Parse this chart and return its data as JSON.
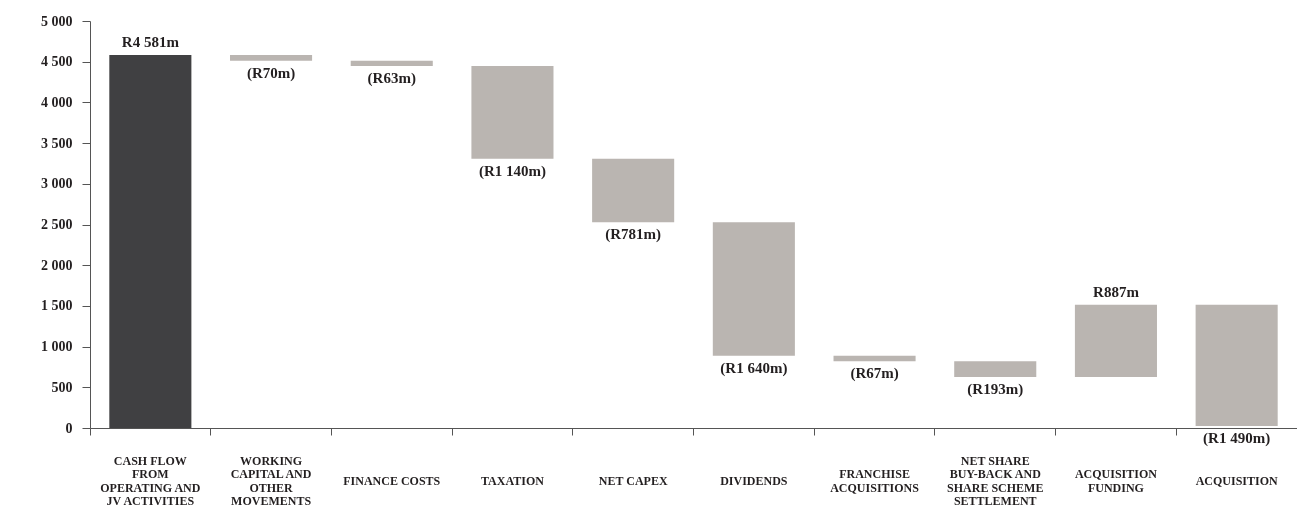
{
  "chart_data": {
    "type": "bar",
    "categories": [
      "CASH FLOW FROM OPERATING AND JV ACTIVITIES",
      "WORKING CAPITAL AND OTHER MOVEMENTS",
      "FINANCE COSTS",
      "TAXATION",
      "NET CAPEX",
      "DIVIDENDS",
      "FRANCHISE ACQUISITIONS",
      "NET SHARE BUY-BACK AND SHARE SCHEME SETTLEMENT",
      "ACQUISITION FUNDING",
      "ACQUISITION"
    ],
    "values": [
      4581,
      -70,
      -63,
      -1140,
      -781,
      -1640,
      -67,
      -193,
      887,
      -1490
    ],
    "base": [
      0,
      4581,
      4511,
      4448,
      3308,
      2527,
      887,
      820,
      627,
      1514
    ],
    "colors": [
      "#404042",
      "#bab5b1",
      "#bab5b1",
      "#bab5b1",
      "#bab5b1",
      "#bab5b1",
      "#bab5b1",
      "#bab5b1",
      "#bab5b1",
      "#bab5b1"
    ],
    "value_labels": [
      "R4 581m",
      "(R70m)",
      "(R63m)",
      "(R1 140m)",
      "(R781m)",
      "(R1 640m)",
      "(R67m)",
      "(R193m)",
      "R887m",
      "(R1 490m)"
    ],
    "ylim": [
      0,
      5000
    ],
    "yticks": [
      0,
      500,
      {
        "value": 1000,
        "label": "1 000"
      },
      {
        "value": 1500,
        "label": "1 500"
      },
      {
        "value": 2000,
        "label": "2 000"
      },
      {
        "value": 2500,
        "label": "2 500"
      },
      {
        "value": 3000,
        "label": "3 000"
      },
      {
        "value": 3500,
        "label": "3 500"
      },
      {
        "value": 4000,
        "label": "4 000"
      },
      {
        "value": 4500,
        "label": "4 500"
      },
      {
        "value": 5000,
        "label": "5 000"
      }
    ]
  }
}
